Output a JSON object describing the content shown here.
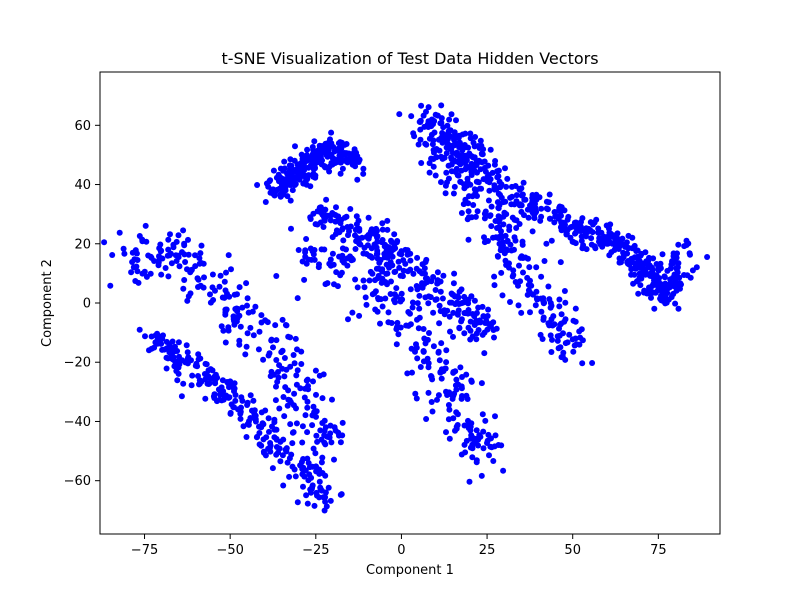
{
  "chart_data": {
    "type": "scatter",
    "title": "t-SNE Visualization of Test Data Hidden Vectors",
    "xlabel": "Component 1",
    "ylabel": "Component 2",
    "xlim": [
      -88,
      93
    ],
    "ylim": [
      -78,
      78
    ],
    "xticks": [
      -75,
      -50,
      -25,
      0,
      25,
      50,
      75
    ],
    "yticks": [
      -60,
      -40,
      -20,
      0,
      20,
      40,
      60
    ],
    "xtick_labels": [
      "−75",
      "−50",
      "−25",
      "0",
      "25",
      "50",
      "75"
    ],
    "ytick_labels": [
      "−60",
      "−40",
      "−20",
      "0",
      "20",
      "40",
      "60"
    ],
    "grid": false,
    "marker_color": "#0000ff",
    "clusters": [
      {
        "cx": [
          -80,
          -68,
          -55,
          -40,
          -30,
          -20
        ],
        "cy": [
          16,
          18,
          6,
          -10,
          -30,
          -50
        ],
        "spread": 7
      },
      {
        "cx": [
          -72,
          -63,
          -50,
          -36,
          -22
        ],
        "cy": [
          -12,
          -20,
          -32,
          -48,
          -66
        ],
        "spread": 4.5
      },
      {
        "cx": [
          -38,
          -30,
          -22,
          -15
        ],
        "cy": [
          38,
          44,
          52,
          48
        ],
        "spread": 4
      },
      {
        "cx": [
          -28,
          -15,
          -5,
          5,
          12,
          18,
          25
        ],
        "cy": [
          18,
          12,
          2,
          -10,
          -25,
          -40,
          -52
        ],
        "spread": 7
      },
      {
        "cx": [
          -25,
          -10,
          5,
          15,
          25
        ],
        "cy": [
          30,
          22,
          10,
          0,
          -10
        ],
        "spread": 5
      },
      {
        "cx": [
          5,
          15,
          25,
          35,
          45,
          55
        ],
        "cy": [
          65,
          55,
          45,
          35,
          28,
          22
        ],
        "spread": 5
      },
      {
        "cx": [
          10,
          20,
          30,
          40,
          50
        ],
        "cy": [
          55,
          40,
          20,
          0,
          -15
        ],
        "spread": 6
      },
      {
        "cx": [
          55,
          65,
          72,
          78,
          82
        ],
        "cy": [
          25,
          18,
          10,
          2,
          20
        ],
        "spread": 4
      }
    ],
    "points_per_cluster": 260
  }
}
